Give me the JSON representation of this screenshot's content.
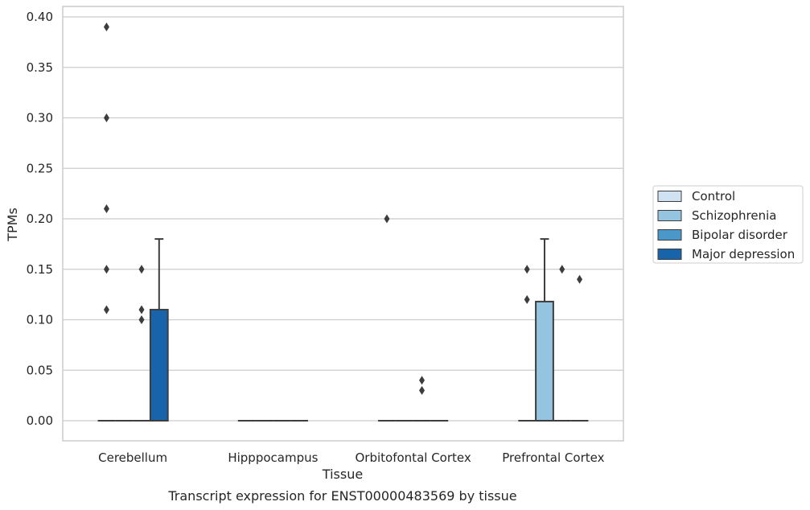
{
  "chart_data": {
    "type": "box",
    "title": "",
    "caption": "Transcript expression for ENST00000483569 by tissue",
    "xlabel": "Tissue",
    "ylabel": "TPMs",
    "ylim": [
      -0.019,
      0.41
    ],
    "yticks": [
      "0.00",
      "0.05",
      "0.10",
      "0.15",
      "0.20",
      "0.25",
      "0.30",
      "0.35",
      "0.40"
    ],
    "ytick_values": [
      0,
      0.05,
      0.1,
      0.15,
      0.2,
      0.25,
      0.3,
      0.35,
      0.4
    ],
    "grid": true,
    "legend_position": "right",
    "categories": [
      "Cerebellum",
      "Hipppocampus",
      "Orbitofontal Cortex",
      "Prefrontal Cortex"
    ],
    "series": [
      {
        "name": "Control",
        "color": "#d0e1f2",
        "boxes": [
          {
            "q1": 0,
            "median": 0,
            "q3": 0,
            "whisker_low": 0,
            "whisker_high": 0,
            "outliers": [
              0.11,
              0.15,
              0.21,
              0.3,
              0.39
            ]
          },
          {
            "q1": 0,
            "median": 0,
            "q3": 0,
            "whisker_low": 0,
            "whisker_high": 0,
            "outliers": []
          },
          {
            "q1": 0,
            "median": 0,
            "q3": 0,
            "whisker_low": 0,
            "whisker_high": 0,
            "outliers": [
              0.2
            ]
          },
          {
            "q1": 0,
            "median": 0,
            "q3": 0,
            "whisker_low": 0,
            "whisker_high": 0,
            "outliers": [
              0.12,
              0.15
            ]
          }
        ]
      },
      {
        "name": "Schizophrenia",
        "color": "#94c4df",
        "boxes": [
          {
            "q1": 0,
            "median": 0,
            "q3": 0,
            "whisker_low": 0,
            "whisker_high": 0,
            "outliers": []
          },
          {
            "q1": 0,
            "median": 0,
            "q3": 0,
            "whisker_low": 0,
            "whisker_high": 0,
            "outliers": []
          },
          {
            "q1": 0,
            "median": 0,
            "q3": 0,
            "whisker_low": 0,
            "whisker_high": 0,
            "outliers": []
          },
          {
            "q1": 0,
            "median": 0,
            "q3": 0.118,
            "whisker_low": 0,
            "whisker_high": 0.18,
            "outliers": []
          }
        ]
      },
      {
        "name": "Bipolar disorder",
        "color": "#4a98c9",
        "boxes": [
          {
            "q1": 0,
            "median": 0,
            "q3": 0,
            "whisker_low": 0,
            "whisker_high": 0,
            "outliers": [
              0.1,
              0.11,
              0.15
            ]
          },
          {
            "q1": 0,
            "median": 0,
            "q3": 0,
            "whisker_low": 0,
            "whisker_high": 0,
            "outliers": []
          },
          {
            "q1": 0,
            "median": 0,
            "q3": 0,
            "whisker_low": 0,
            "whisker_high": 0,
            "outliers": [
              0.03,
              0.04
            ]
          },
          {
            "q1": 0,
            "median": 0,
            "q3": 0,
            "whisker_low": 0,
            "whisker_high": 0,
            "outliers": [
              0.15
            ]
          }
        ]
      },
      {
        "name": "Major depression",
        "color": "#1764ab",
        "boxes": [
          {
            "q1": 0,
            "median": 0,
            "q3": 0.11,
            "whisker_low": 0,
            "whisker_high": 0.18,
            "outliers": []
          },
          {
            "q1": 0,
            "median": 0,
            "q3": 0,
            "whisker_low": 0,
            "whisker_high": 0,
            "outliers": []
          },
          {
            "q1": 0,
            "median": 0,
            "q3": 0,
            "whisker_low": 0,
            "whisker_high": 0,
            "outliers": []
          },
          {
            "q1": 0,
            "median": 0,
            "q3": 0,
            "whisker_low": 0,
            "whisker_high": 0,
            "outliers": [
              0.14
            ]
          }
        ]
      }
    ],
    "colors": {
      "grid": "#cccccc",
      "frame": "#cccccc",
      "box_edge": "#3d3d3d",
      "outlier": "#3d3d3d"
    }
  }
}
